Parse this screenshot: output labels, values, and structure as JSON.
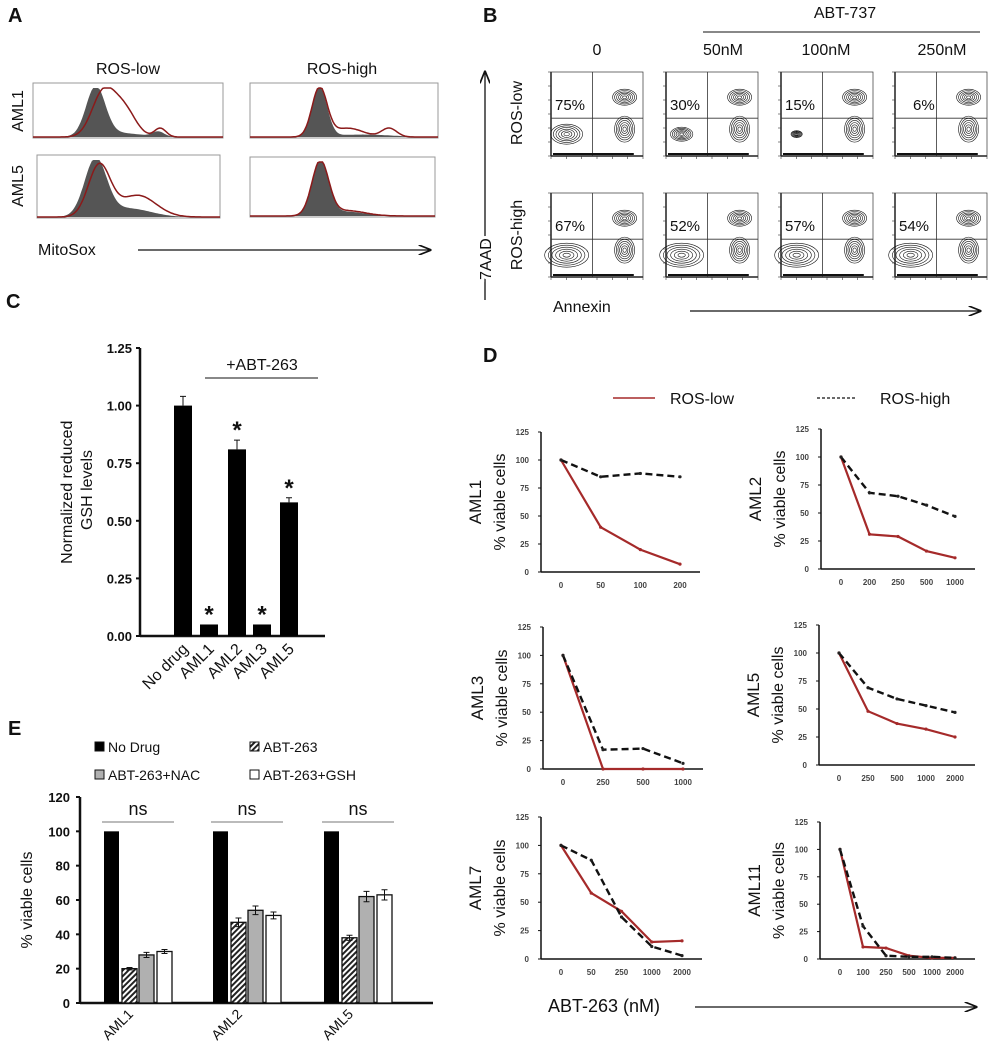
{
  "panels": {
    "a": "A",
    "b": "B",
    "c": "C",
    "d": "D",
    "e": "E"
  },
  "colors": {
    "ros_low": "#a52a2a",
    "ros_high": "#111111",
    "histogram_fill": "#555555",
    "bar_black": "#000000",
    "bar_gray": "#b0b0b0"
  },
  "chart_data": [
    {
      "panel": "A",
      "type": "histogram",
      "column_labels": [
        "ROS-low",
        "ROS-high"
      ],
      "row_labels": [
        "AML1",
        "AML5"
      ],
      "xlabel": "MitoSox"
    },
    {
      "panel": "B",
      "type": "contour",
      "header": "ABT-737",
      "column_labels": [
        "0",
        "50nM",
        "100nM",
        "250nM"
      ],
      "row_labels": [
        "ROS-low",
        "ROS-high"
      ],
      "percentages": [
        [
          "75%",
          "30%",
          "15%",
          "6%"
        ],
        [
          "67%",
          "52%",
          "57%",
          "54%"
        ]
      ],
      "ylabel": "7AAD",
      "xlabel": "Annexin"
    },
    {
      "panel": "C",
      "type": "bar",
      "categories": [
        "No drug",
        "AML1",
        "AML2",
        "AML3",
        "AML5"
      ],
      "values": [
        1.0,
        0.05,
        0.81,
        0.05,
        0.58
      ],
      "errors": [
        0.04,
        0,
        0.04,
        0,
        0.02
      ],
      "significance": [
        "",
        "*",
        "*",
        "*",
        "*"
      ],
      "bracket_label": "+ABT-263",
      "ylabel": "Normalized reduced GSH levels",
      "ylim": [
        0,
        1.25
      ],
      "yticks": [
        "0.00",
        "0.25",
        "0.50",
        "0.75",
        "1.00",
        "1.25"
      ]
    },
    {
      "panel": "D",
      "type": "line",
      "legend": [
        "ROS-low",
        "ROS-high"
      ],
      "legend_placement": "top",
      "xlabel": "ABT-263 (nM)",
      "ylim": [
        0,
        125
      ],
      "yticks": [
        "0",
        "25",
        "50",
        "75",
        "100",
        "125"
      ],
      "subplots": [
        {
          "name": "AML1",
          "ylabel": "% viable cells",
          "categories": [
            "0",
            "50",
            "100",
            "200"
          ],
          "series": [
            {
              "name": "ROS-low",
              "values": [
                100,
                40,
                20,
                7
              ]
            },
            {
              "name": "ROS-high",
              "values": [
                100,
                85,
                88,
                85
              ]
            }
          ]
        },
        {
          "name": "AML2",
          "ylabel": "% viable cells",
          "categories": [
            "0",
            "200",
            "250",
            "500",
            "1000"
          ],
          "series": [
            {
              "name": "ROS-low",
              "values": [
                100,
                31,
                29,
                16,
                10
              ]
            },
            {
              "name": "ROS-high",
              "values": [
                100,
                68,
                65,
                57,
                47
              ]
            }
          ]
        },
        {
          "name": "AML3",
          "ylabel": "% viable cells",
          "categories": [
            "0",
            "250",
            "500",
            "1000"
          ],
          "series": [
            {
              "name": "ROS-low",
              "values": [
                100,
                0,
                0,
                0
              ]
            },
            {
              "name": "ROS-high",
              "values": [
                100,
                17,
                18,
                5
              ]
            }
          ]
        },
        {
          "name": "AML5",
          "ylabel": "% viable cells",
          "categories": [
            "0",
            "250",
            "500",
            "1000",
            "2000"
          ],
          "series": [
            {
              "name": "ROS-low",
              "values": [
                100,
                48,
                37,
                32,
                25
              ]
            },
            {
              "name": "ROS-high",
              "values": [
                100,
                69,
                59,
                53,
                47
              ]
            }
          ]
        },
        {
          "name": "AML7",
          "ylabel": "% viable cells",
          "categories": [
            "0",
            "50",
            "250",
            "1000",
            "2000"
          ],
          "series": [
            {
              "name": "ROS-low",
              "values": [
                100,
                58,
                42,
                15,
                16
              ]
            },
            {
              "name": "ROS-high",
              "values": [
                100,
                87,
                37,
                11,
                3
              ]
            }
          ]
        },
        {
          "name": "AML11",
          "ylabel": "% viable cells",
          "categories": [
            "0",
            "100",
            "250",
            "500",
            "1000",
            "2000"
          ],
          "series": [
            {
              "name": "ROS-low",
              "values": [
                100,
                11,
                10,
                3,
                1,
                1
              ]
            },
            {
              "name": "ROS-high",
              "values": [
                100,
                30,
                3,
                2,
                2,
                1
              ]
            }
          ]
        }
      ]
    },
    {
      "panel": "E",
      "type": "bar",
      "categories": [
        "AML1",
        "AML2",
        "AML5"
      ],
      "series": [
        {
          "name": "No Drug",
          "values": [
            100,
            100,
            100
          ],
          "errors": [
            0,
            0,
            0
          ]
        },
        {
          "name": "ABT-263",
          "values": [
            20,
            47,
            38
          ],
          "errors": [
            0.7,
            2.5,
            1.5
          ]
        },
        {
          "name": "ABT-263+NAC",
          "values": [
            28,
            54,
            62
          ],
          "errors": [
            1.5,
            2.5,
            3
          ]
        },
        {
          "name": "ABT-263+GSH",
          "values": [
            30,
            51,
            63
          ],
          "errors": [
            1.2,
            2,
            3
          ]
        }
      ],
      "annotations": [
        "ns",
        "ns",
        "ns"
      ],
      "ylabel": "% viable cells",
      "ylim": [
        0,
        120
      ],
      "yticks": [
        "0",
        "20",
        "40",
        "60",
        "80",
        "100",
        "120"
      ],
      "legend_placement": "top-left"
    }
  ]
}
